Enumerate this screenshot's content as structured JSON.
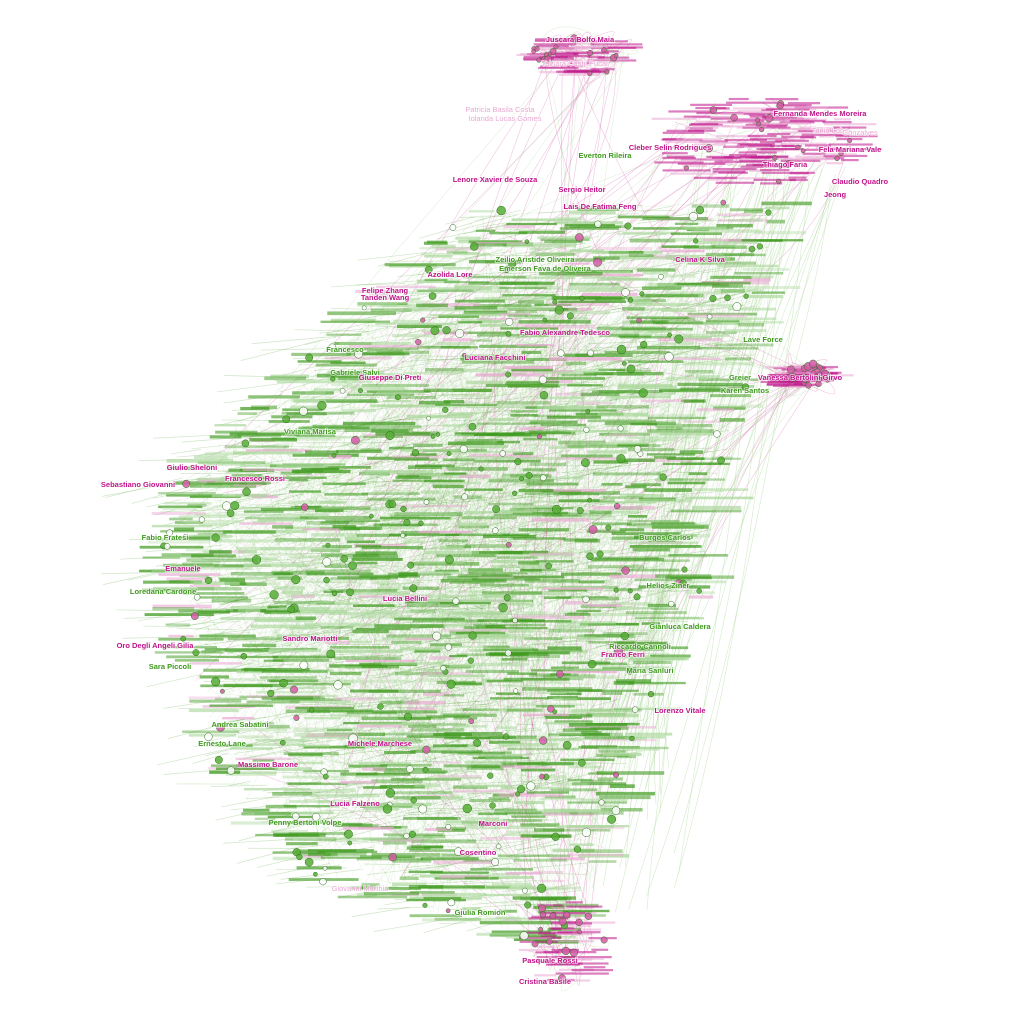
{
  "colors": {
    "green_dark": "#3f9a1e",
    "green_mid": "#56ad35",
    "green_light": "#a9d79a",
    "pink_dark": "#c0148a",
    "pink_mid": "#d55aa8",
    "pink_light": "#e9a9d3",
    "node_stroke": "#2f6b1c",
    "background": "#ffffff"
  },
  "clusters": [
    {
      "name": "main",
      "color": "green"
    },
    {
      "name": "top-right",
      "color": "pink"
    },
    {
      "name": "top",
      "color": "pink"
    },
    {
      "name": "bottom",
      "color": "pink"
    }
  ],
  "labels": [
    {
      "text": "Juscara Bolfo Maia",
      "group": "pink",
      "emphasis": "strong"
    },
    {
      "text": "Tainara Castil Pucar",
      "group": "pink",
      "emphasis": "light"
    },
    {
      "text": "Patricia Basila Costa",
      "group": "pink",
      "emphasis": "light"
    },
    {
      "text": "Iolanda Lucas Gomes",
      "group": "pink",
      "emphasis": "light"
    },
    {
      "text": "Cleber Selin Rodrigues",
      "group": "pink",
      "emphasis": "strong"
    },
    {
      "text": "Everton Rileira",
      "group": "green",
      "emphasis": "strong"
    },
    {
      "text": "Lenore Xavier de Souza",
      "group": "pink",
      "emphasis": "strong"
    },
    {
      "text": "Sergio Heitor",
      "group": "pink",
      "emphasis": "strong"
    },
    {
      "text": "Lais De Fatima Feng",
      "group": "pink",
      "emphasis": "strong"
    },
    {
      "text": "Felipe Zhang",
      "group": "pink",
      "emphasis": "strong"
    },
    {
      "text": "Tanden Wang",
      "group": "pink",
      "emphasis": "strong"
    },
    {
      "text": "Azolida Lore",
      "group": "pink",
      "emphasis": "strong"
    },
    {
      "text": "Zeilio Aristide Oliveira",
      "group": "green",
      "emphasis": "strong"
    },
    {
      "text": "Emerson Fava de Oliveira",
      "group": "green",
      "emphasis": "strong"
    },
    {
      "text": "Celina K Silva",
      "group": "pink",
      "emphasis": "strong"
    },
    {
      "text": "Fabio Alexandre Tedesco",
      "group": "pink",
      "emphasis": "strong"
    },
    {
      "text": "Luciana Facchini",
      "group": "pink",
      "emphasis": "strong"
    },
    {
      "text": "Fernanda Mendes Moreira",
      "group": "pink",
      "emphasis": "strong"
    },
    {
      "text": "Tania Lobo",
      "group": "pink",
      "emphasis": "light"
    },
    {
      "text": "Gonzalves",
      "group": "pink",
      "emphasis": "light"
    },
    {
      "text": "Fela Mariana Vale",
      "group": "pink",
      "emphasis": "strong"
    },
    {
      "text": "Thiago Faria",
      "group": "pink",
      "emphasis": "strong"
    },
    {
      "text": "Claudio Quadro",
      "group": "pink",
      "emphasis": "strong"
    },
    {
      "text": "Jeong",
      "group": "pink",
      "emphasis": "strong"
    },
    {
      "text": "Vanessa Bertolini Girvo",
      "group": "pink",
      "emphasis": "strong"
    },
    {
      "text": "Karen Santos",
      "group": "green",
      "emphasis": "strong"
    },
    {
      "text": "Greier",
      "group": "green",
      "emphasis": "strong"
    },
    {
      "text": "Lave Force",
      "group": "green",
      "emphasis": "strong"
    },
    {
      "text": "Francesco",
      "group": "green",
      "emphasis": "strong"
    },
    {
      "text": "Gabriele Salvi",
      "group": "green",
      "emphasis": "strong"
    },
    {
      "text": "Giuseppe Di Preti",
      "group": "pink",
      "emphasis": "strong"
    },
    {
      "text": "Viviana Marisa",
      "group": "green",
      "emphasis": "strong"
    },
    {
      "text": "Sebastiano Giovanni",
      "group": "pink",
      "emphasis": "strong"
    },
    {
      "text": "Giulio Sheloni",
      "group": "pink",
      "emphasis": "strong"
    },
    {
      "text": "Francesco Rossi",
      "group": "pink",
      "emphasis": "strong"
    },
    {
      "text": "Fabio Fratesi",
      "group": "green",
      "emphasis": "strong"
    },
    {
      "text": "Emanuele",
      "group": "pink",
      "emphasis": "strong"
    },
    {
      "text": "Loredana Cardone",
      "group": "green",
      "emphasis": "strong"
    },
    {
      "text": "Oro Degli Angeli Gilia",
      "group": "pink",
      "emphasis": "strong"
    },
    {
      "text": "Sara Piccoli",
      "group": "green",
      "emphasis": "strong"
    },
    {
      "text": "Ernesto Lane",
      "group": "green",
      "emphasis": "strong"
    },
    {
      "text": "Andrea Sabatini",
      "group": "green",
      "emphasis": "strong"
    },
    {
      "text": "Massimo Barone",
      "group": "pink",
      "emphasis": "strong"
    },
    {
      "text": "Michele Marchese",
      "group": "pink",
      "emphasis": "strong"
    },
    {
      "text": "Penny Bertoni Volpe",
      "group": "green",
      "emphasis": "strong"
    },
    {
      "text": "Lucia Falzeno",
      "group": "pink",
      "emphasis": "strong"
    },
    {
      "text": "Giovanni Marthia",
      "group": "pink",
      "emphasis": "light"
    },
    {
      "text": "Giulia Romion",
      "group": "green",
      "emphasis": "strong"
    },
    {
      "text": "Pasquale Rossi",
      "group": "pink",
      "emphasis": "strong"
    },
    {
      "text": "Cristina Basile",
      "group": "pink",
      "emphasis": "strong"
    },
    {
      "text": "Cosentino",
      "group": "pink",
      "emphasis": "strong"
    },
    {
      "text": "Marconi",
      "group": "pink",
      "emphasis": "strong"
    },
    {
      "text": "Burgos Carlos",
      "group": "green",
      "emphasis": "strong"
    },
    {
      "text": "Riccardo Cannoli",
      "group": "green",
      "emphasis": "strong"
    },
    {
      "text": "Franco Ferri",
      "group": "pink",
      "emphasis": "strong"
    },
    {
      "text": "Lorenzo Vitale",
      "group": "pink",
      "emphasis": "strong"
    },
    {
      "text": "Maria Sanluri",
      "group": "green",
      "emphasis": "strong"
    },
    {
      "text": "Helios Ziner",
      "group": "green",
      "emphasis": "strong"
    },
    {
      "text": "Sandro Mariotti",
      "group": "pink",
      "emphasis": "strong"
    },
    {
      "text": "Gianluca Caldera",
      "group": "green",
      "emphasis": "strong"
    },
    {
      "text": "Lucia Bellini",
      "group": "pink",
      "emphasis": "strong"
    }
  ]
}
